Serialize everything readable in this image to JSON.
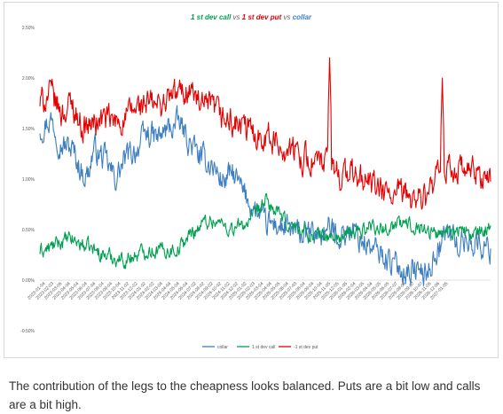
{
  "chart_data": {
    "type": "line",
    "title": {
      "call": "1 st dev call",
      "vs1": "vs",
      "put": "1 st dev put",
      "vs2": "vs",
      "collar": "collar"
    },
    "ylim": [
      -0.5,
      2.5
    ],
    "yticks": [
      "2.50%",
      "2.00%",
      "1.50%",
      "1.00%",
      "0.50%",
      "0.00%",
      "-0.50%"
    ],
    "ytick_values": [
      2.5,
      2.0,
      1.5,
      1.0,
      0.5,
      0.0,
      -0.5
    ],
    "grid": false,
    "legend_position": "bottom",
    "x_tick_labels": [
      "2023-01-04",
      "2023-02-03",
      "2023-03-06",
      "2023-04-04",
      "2023-05-04",
      "2023-06-04",
      "2023-07-04",
      "2023-08-04",
      "2023-09-04",
      "2023-10-04",
      "2023-11-02",
      "2023-12-02",
      "2024-01-02",
      "2024-02-02",
      "2024-03-04",
      "2024-04-04",
      "2024-05-04",
      "2024-06-04",
      "2024-07-02",
      "2024-08-02",
      "2024-09-02",
      "2024-10-02",
      "2024-11-02",
      "2024-12-02",
      "2025-01-02",
      "2025-02-03",
      "2025-03-04",
      "2025-04-04",
      "2025-05-05",
      "2025-06-04",
      "2025-07-03",
      "2025-08-04",
      "2025-09-04",
      "2025-10-04",
      "2025-11-05",
      "2025-12-05",
      "2026-01-05",
      "2026-02-04",
      "2026-03-05",
      "2026-04-04",
      "2026-05-05",
      "2026-06-05",
      "2026-07-07",
      "2026-08-06",
      "2026-09-07",
      "2026-10-07",
      "2026-11-06",
      "2026-12-06",
      "2027-01-05"
    ],
    "series": [
      {
        "name": "collar",
        "color": "#3d7fc1",
        "points": [
          [
            0,
            1.5
          ],
          [
            2,
            1.6
          ],
          [
            4,
            1.35
          ],
          [
            6,
            1.3
          ],
          [
            8,
            1.05
          ],
          [
            9,
            1.05
          ],
          [
            10,
            1.3
          ],
          [
            12,
            1.2
          ],
          [
            14,
            1.0
          ],
          [
            16,
            1.2
          ],
          [
            18,
            1.3
          ],
          [
            20,
            1.45
          ],
          [
            22,
            1.4
          ],
          [
            24,
            1.5
          ],
          [
            26,
            1.55
          ],
          [
            28,
            1.35
          ],
          [
            30,
            1.2
          ],
          [
            32,
            1.15
          ],
          [
            34,
            0.98
          ],
          [
            36,
            1.05
          ],
          [
            38,
            0.85
          ],
          [
            40,
            0.7
          ],
          [
            42,
            0.55
          ],
          [
            44,
            0.55
          ],
          [
            46,
            0.5
          ],
          [
            48,
            0.45
          ],
          [
            50,
            0.45
          ],
          [
            52,
            0.45
          ],
          [
            54,
            0.5
          ],
          [
            56,
            0.45
          ],
          [
            58,
            0.5
          ],
          [
            60,
            0.4
          ],
          [
            62,
            0.3
          ],
          [
            64,
            0.25
          ],
          [
            66,
            0.15
          ],
          [
            68,
            0.1
          ],
          [
            70,
            0.1
          ],
          [
            72,
            0.05
          ],
          [
            74,
            0.3
          ],
          [
            76,
            0.5
          ],
          [
            78,
            0.35
          ],
          [
            80,
            0.4
          ],
          [
            82,
            0.35
          ],
          [
            84,
            0.3
          ]
        ],
        "noise": 0.12
      },
      {
        "name": "1 st dev call",
        "color": "#00a050",
        "points": [
          [
            0,
            0.28
          ],
          [
            2,
            0.32
          ],
          [
            4,
            0.38
          ],
          [
            6,
            0.4
          ],
          [
            8,
            0.35
          ],
          [
            10,
            0.3
          ],
          [
            12,
            0.25
          ],
          [
            14,
            0.22
          ],
          [
            16,
            0.2
          ],
          [
            18,
            0.25
          ],
          [
            20,
            0.3
          ],
          [
            22,
            0.3
          ],
          [
            24,
            0.3
          ],
          [
            26,
            0.32
          ],
          [
            28,
            0.45
          ],
          [
            30,
            0.55
          ],
          [
            32,
            0.6
          ],
          [
            34,
            0.55
          ],
          [
            36,
            0.5
          ],
          [
            38,
            0.55
          ],
          [
            40,
            0.62
          ],
          [
            42,
            0.78
          ],
          [
            44,
            0.68
          ],
          [
            46,
            0.55
          ],
          [
            48,
            0.52
          ],
          [
            50,
            0.45
          ],
          [
            52,
            0.45
          ],
          [
            54,
            0.42
          ],
          [
            56,
            0.42
          ],
          [
            58,
            0.45
          ],
          [
            60,
            0.5
          ],
          [
            62,
            0.55
          ],
          [
            64,
            0.5
          ],
          [
            66,
            0.55
          ],
          [
            68,
            0.55
          ],
          [
            70,
            0.55
          ],
          [
            72,
            0.5
          ],
          [
            74,
            0.45
          ],
          [
            76,
            0.5
          ],
          [
            78,
            0.5
          ],
          [
            80,
            0.45
          ],
          [
            82,
            0.45
          ],
          [
            84,
            0.55
          ]
        ],
        "noise": 0.07
      },
      {
        "name": "-1 st dev put",
        "color": "#e60000",
        "points": [
          [
            0,
            1.75
          ],
          [
            2,
            1.85
          ],
          [
            4,
            1.65
          ],
          [
            6,
            1.75
          ],
          [
            8,
            1.5
          ],
          [
            10,
            1.55
          ],
          [
            12,
            1.6
          ],
          [
            14,
            1.55
          ],
          [
            16,
            1.6
          ],
          [
            18,
            1.7
          ],
          [
            20,
            1.75
          ],
          [
            22,
            1.72
          ],
          [
            24,
            1.8
          ],
          [
            26,
            1.85
          ],
          [
            28,
            1.9
          ],
          [
            30,
            1.7
          ],
          [
            32,
            1.7
          ],
          [
            34,
            1.6
          ],
          [
            36,
            1.55
          ],
          [
            38,
            1.5
          ],
          [
            40,
            1.45
          ],
          [
            42,
            1.45
          ],
          [
            44,
            1.35
          ],
          [
            46,
            1.3
          ],
          [
            48,
            1.25
          ],
          [
            50,
            1.2
          ],
          [
            52,
            1.15
          ],
          [
            54,
            1.15
          ],
          [
            56,
            1.05
          ],
          [
            58,
            1.05
          ],
          [
            60,
            1.0
          ],
          [
            62,
            0.95
          ],
          [
            64,
            0.85
          ],
          [
            66,
            0.82
          ],
          [
            68,
            0.85
          ],
          [
            70,
            0.82
          ],
          [
            72,
            0.8
          ],
          [
            74,
            1.0
          ],
          [
            76,
            1.1
          ],
          [
            78,
            1.1
          ],
          [
            80,
            1.05
          ],
          [
            82,
            1.05
          ],
          [
            84,
            0.98
          ]
        ],
        "noise": 0.13,
        "spikes": [
          [
            54,
            2.2
          ],
          [
            75,
            2.0
          ]
        ]
      }
    ],
    "x_range": [
      0,
      84
    ]
  },
  "legend": {
    "collar": "collar",
    "call": "1 st dev call",
    "put": "-1 st dev put"
  },
  "caption": "The contribution of the legs to the cheapness looks balanced. Puts are a bit low and calls are a bit high."
}
